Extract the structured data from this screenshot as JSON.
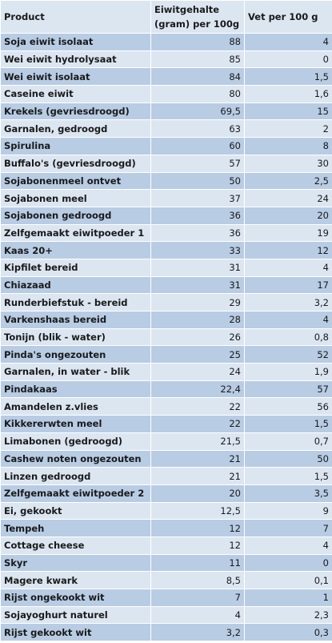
{
  "table": {
    "header": [
      "Product",
      "Eiwitgehalte (gram) per 100g",
      "Vet per 100 g"
    ],
    "rows": [
      [
        "Soja eiwit isolaat",
        "88",
        "4"
      ],
      [
        "Wei eiwit hydrolysaat",
        "85",
        "0"
      ],
      [
        "Wei eiwit isolaat",
        "84",
        "1,5"
      ],
      [
        "Caseine eiwit",
        "80",
        "1,6"
      ],
      [
        "Krekels (gevriesdroogd)",
        "69,5",
        "15"
      ],
      [
        "Garnalen, gedroogd",
        "63",
        "2"
      ],
      [
        "Spirulina",
        "60",
        "8"
      ],
      [
        "Buffalo's (gevriesdroogd)",
        "57",
        "30"
      ],
      [
        "Sojabonenmeel ontvet",
        "50",
        "2,5"
      ],
      [
        "Sojabonen meel",
        "37",
        "24"
      ],
      [
        "Sojabonen gedroogd",
        "36",
        "20"
      ],
      [
        "Zelfgemaakt eiwitpoeder 1",
        "36",
        "19"
      ],
      [
        "Kaas 20+",
        "33",
        "12"
      ],
      [
        "Kipfilet bereid",
        "31",
        "4"
      ],
      [
        "Chiazaad",
        "31",
        "17"
      ],
      [
        "Runderbiefstuk - bereid",
        "29",
        "3,2"
      ],
      [
        "Varkenshaas bereid",
        "28",
        "4"
      ],
      [
        "Tonijn (blik - water)",
        "26",
        "0,8"
      ],
      [
        "Pinda's ongezouten",
        "25",
        "52"
      ],
      [
        "Garnalen, in water - blik",
        "24",
        "1,9"
      ],
      [
        "Pindakaas",
        "22,4",
        "57"
      ],
      [
        "Amandelen z.vlies",
        "22",
        "56"
      ],
      [
        "Kikkererwten meel",
        "22",
        "1,5"
      ],
      [
        "Limabonen (gedroogd)",
        "21,5",
        "0,7"
      ],
      [
        "Cashew noten ongezouten",
        "21",
        "50"
      ],
      [
        "Linzen gedroogd",
        "21",
        "1,5"
      ],
      [
        "Zelfgemaakt eiwitpoeder 2",
        "20",
        "3,5"
      ],
      [
        "Ei, gekookt",
        "12,5",
        "9"
      ],
      [
        "Tempeh",
        "12",
        "7"
      ],
      [
        "Cottage cheese",
        "12",
        "4"
      ],
      [
        "Skyr",
        "11",
        "0"
      ],
      [
        "Magere kwark",
        "8,5",
        "0,1"
      ],
      [
        "Rijst ongekookt wit",
        "7",
        "1"
      ],
      [
        "Sojayoghurt naturel",
        "4",
        "2,3"
      ],
      [
        "Rijst gekookt wit",
        "3,2",
        "0,3"
      ]
    ]
  }
}
